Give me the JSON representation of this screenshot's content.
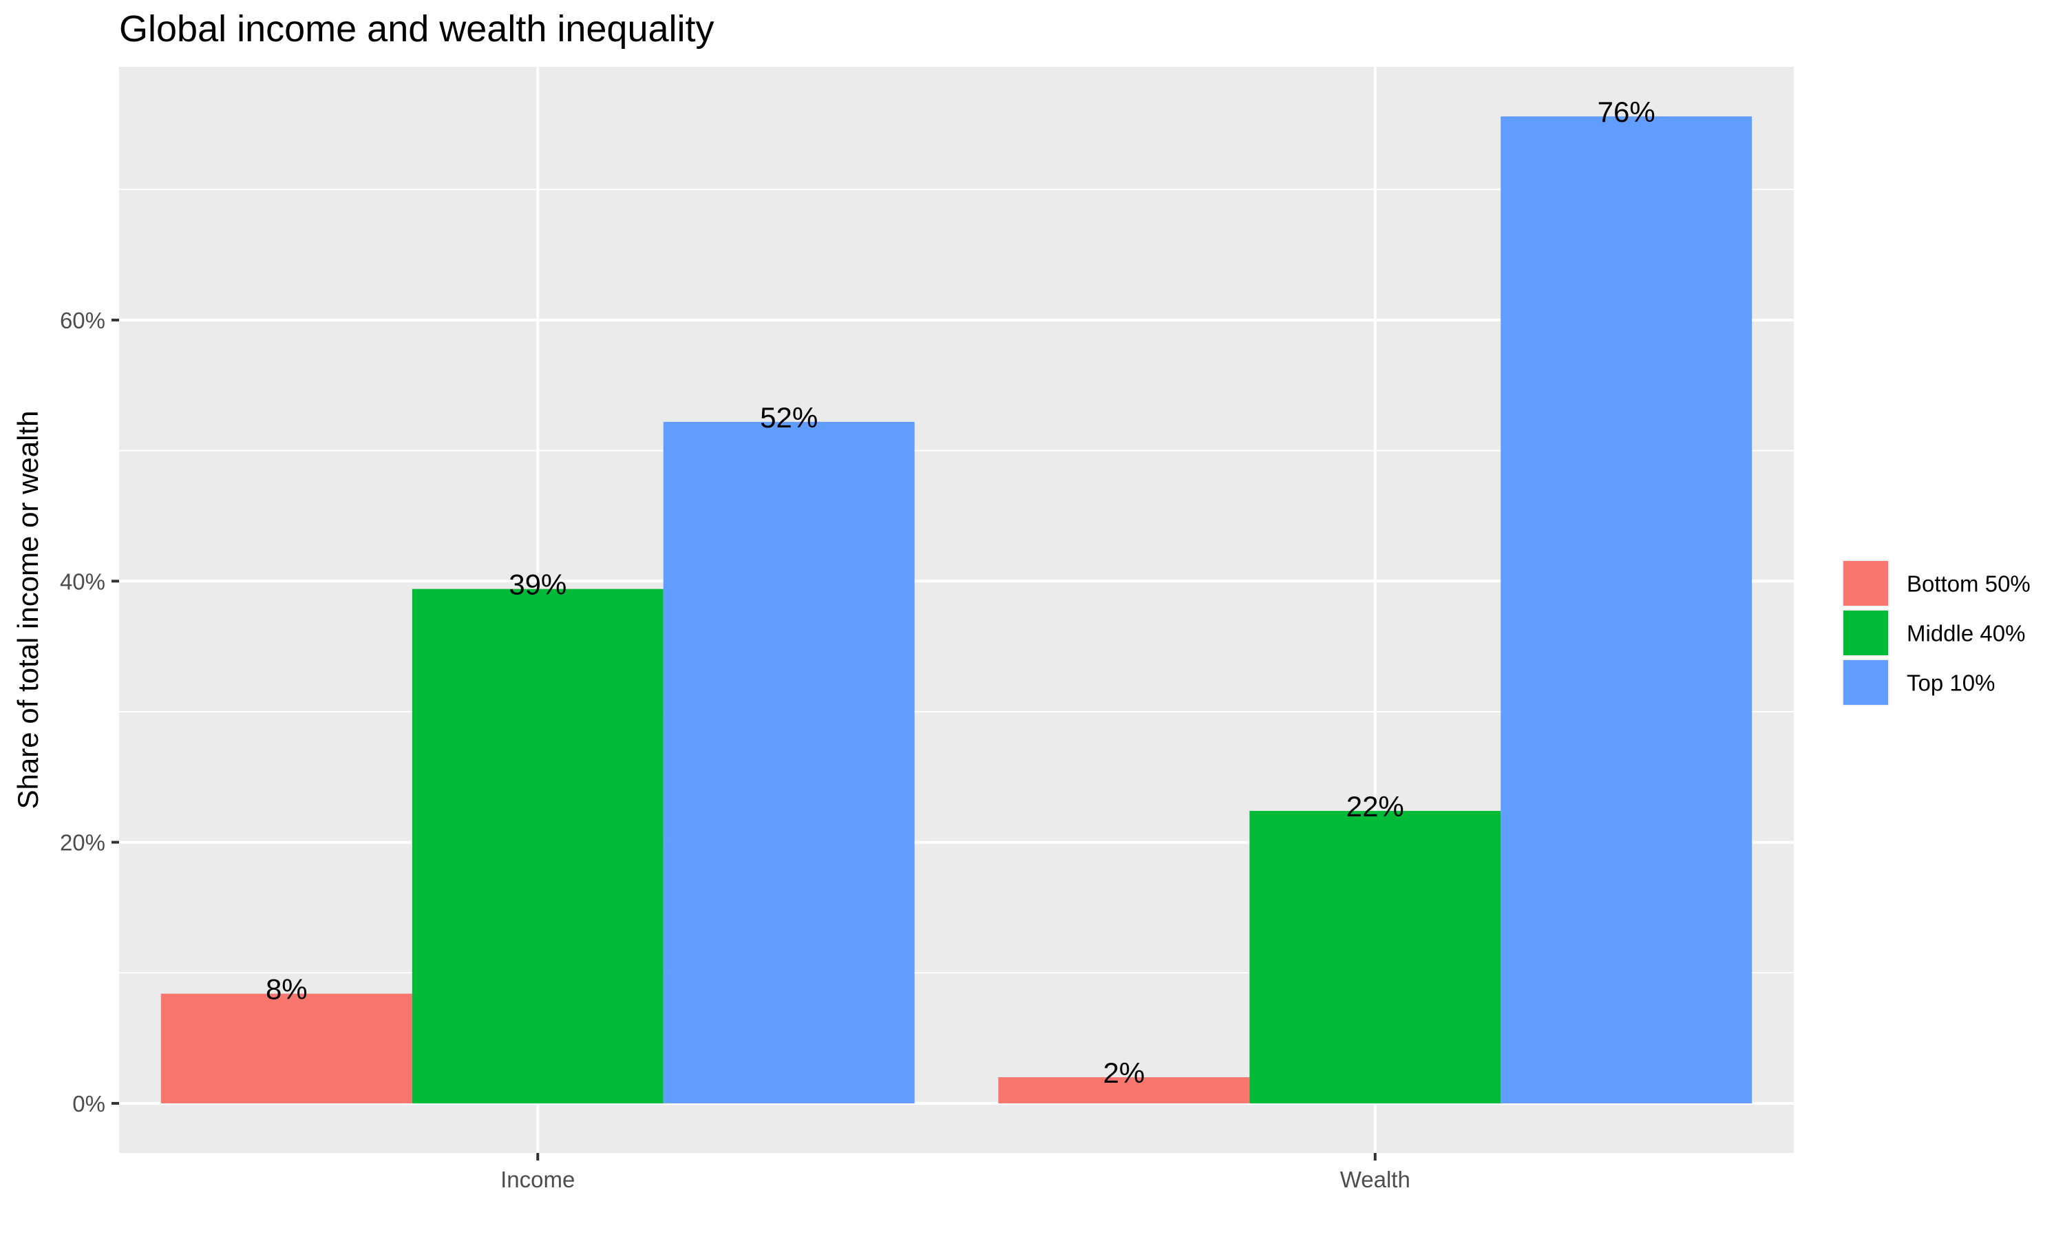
{
  "chart_data": {
    "type": "bar",
    "title": "Global income and wealth inequality",
    "xlabel": "",
    "ylabel": "Share of total income or wealth",
    "categories": [
      "Income",
      "Wealth"
    ],
    "series": [
      {
        "name": "Bottom 50%",
        "color": "#F8766D",
        "values": [
          8.4,
          2.0
        ],
        "labels": [
          "8%",
          "2%"
        ]
      },
      {
        "name": "Middle 40%",
        "color": "#00BA38",
        "values": [
          39.4,
          22.4
        ],
        "labels": [
          "39%",
          "22%"
        ]
      },
      {
        "name": "Top 10%",
        "color": "#619CFF",
        "values": [
          52.2,
          75.6
        ],
        "labels": [
          "52%",
          "76%"
        ]
      }
    ],
    "yticks": [
      0,
      20,
      40,
      60
    ],
    "ytick_labels": [
      "0%",
      "20%",
      "40%",
      "60%"
    ],
    "ylim": [
      -3.8,
      79.4
    ],
    "grid": true,
    "legend_position": "right",
    "panel_background": "#EBEBEB"
  }
}
